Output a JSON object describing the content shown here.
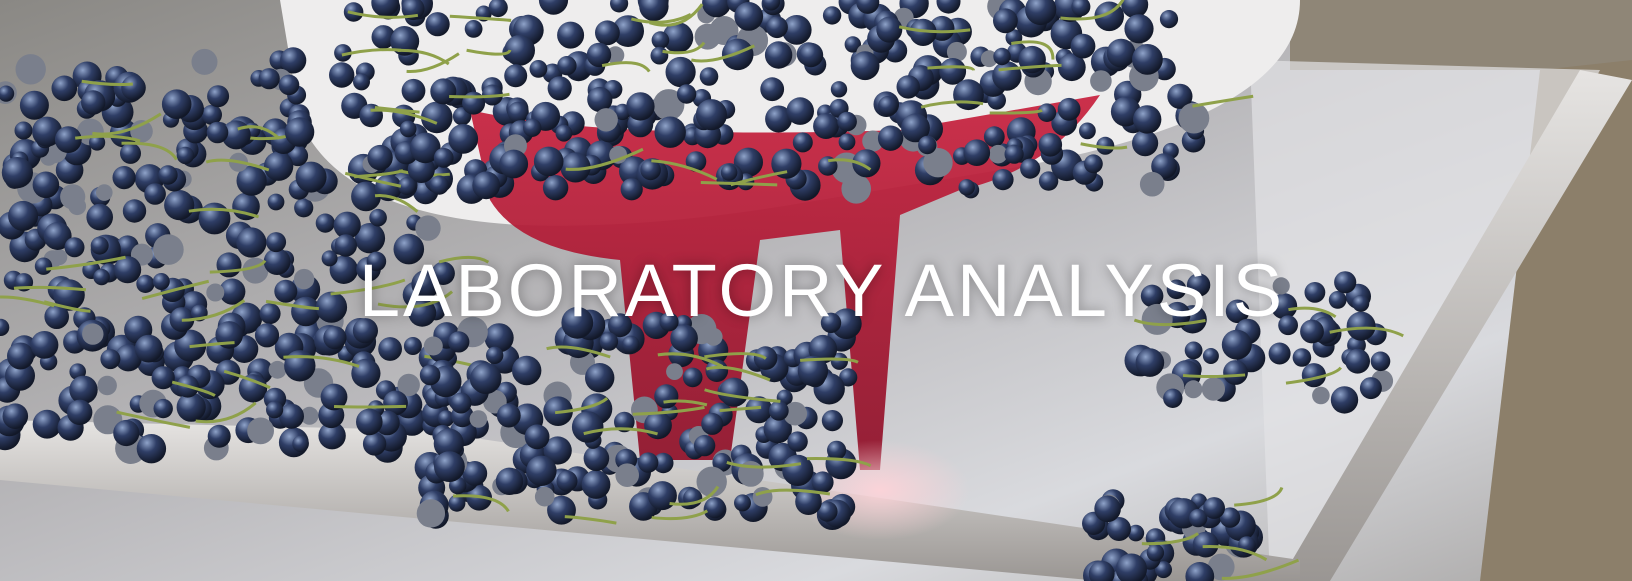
{
  "banner": {
    "title": "LABORATORY ANALYSIS"
  }
}
